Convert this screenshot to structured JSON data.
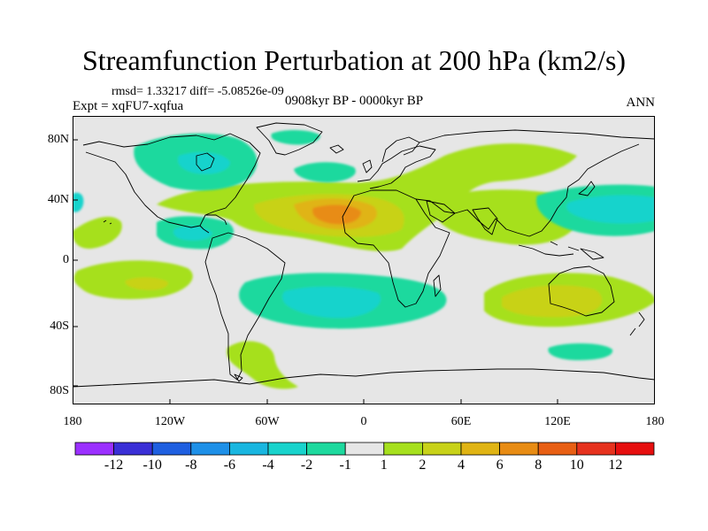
{
  "title": "Streamfunction Perturbation at 200 hPa (km2/s)",
  "stats": "rmsd= 1.33217 diff= -5.08526e-09",
  "experiment": "Expt = xqFU7-xqfua",
  "period": "0908kyr BP - 0000kyr BP",
  "season": "ANN",
  "axes": {
    "y_ticks": [
      "80N",
      "40N",
      "0",
      "40S",
      "80S"
    ],
    "x_ticks": [
      "180",
      "120W",
      "60W",
      "0",
      "60E",
      "120E",
      "180"
    ]
  },
  "colorbar": {
    "labels": [
      "-12",
      "-10",
      "-8",
      "-6",
      "-4",
      "-2",
      "-1",
      "1",
      "2",
      "4",
      "6",
      "8",
      "10",
      "12"
    ],
    "colors": [
      "#9b30ff",
      "#3a2fd6",
      "#1f5fe0",
      "#1e90e8",
      "#19b6e0",
      "#19d3cc",
      "#1ed99e",
      "#e6e6e6",
      "#a6e01e",
      "#c8d219",
      "#e0b414",
      "#e88c14",
      "#e85f14",
      "#e6321e",
      "#e60f0f"
    ]
  },
  "colors": {
    "background": "#e6e6e6",
    "coast": "#000000"
  }
}
